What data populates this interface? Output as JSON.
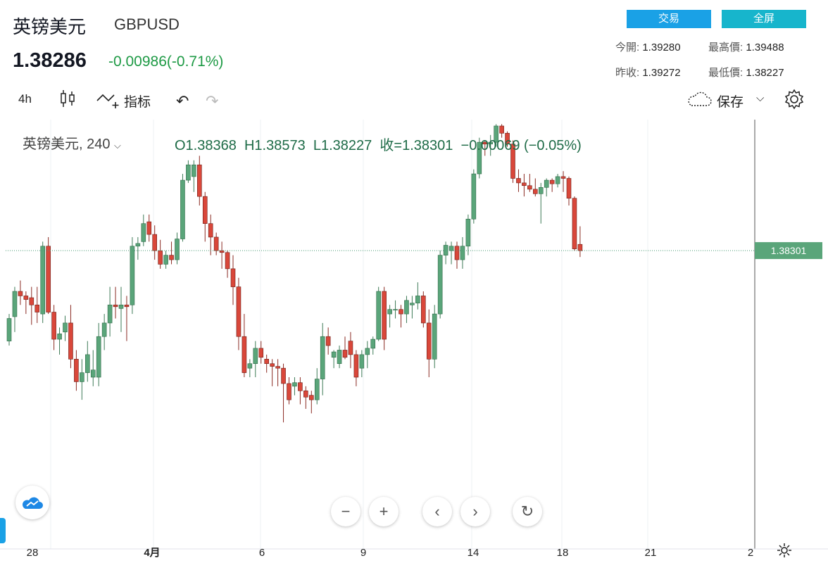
{
  "header": {
    "name": "英镑美元",
    "symbol": "GBPUSD",
    "price": "1.38286",
    "change": "-0.00986(-0.71%)",
    "trade_label": "交易",
    "fullscreen_label": "全屏",
    "open_label": "今開:",
    "open_value": "1.39280",
    "high_label": "最高價:",
    "high_value": "1.39488",
    "prev_label": "昨收:",
    "prev_value": "1.39272",
    "low_label": "最低價:",
    "low_value": "1.38227"
  },
  "toolbar": {
    "interval": "4h",
    "indicators_label": "指标",
    "save_label": "保存"
  },
  "legend": {
    "title": "英镑美元, 240",
    "open": "O1.38368",
    "high": "H1.38573",
    "low": "L1.38227",
    "close": "收=1.38301",
    "change": "−0.00069 (−0.05%)"
  },
  "colors": {
    "up": "#26a69a",
    "up_fill": "#5aa57a",
    "down": "#d9473a",
    "button": "#1aa1e6",
    "fullscreen": "#17b5cc",
    "change_text": "#1e9a45"
  },
  "chart_data": {
    "type": "candlestick",
    "interval": "4h",
    "x_ticks": [
      "28",
      "4月",
      "6",
      "9",
      "14",
      "18",
      "21",
      "2"
    ],
    "last_price_label": "1.38301",
    "ylim": [
      1.35,
      1.3975
    ],
    "series": [
      {
        "name": "GBPUSD",
        "ohlc": [
          [
            1.373,
            1.376,
            1.3725,
            1.3755
          ],
          [
            1.3757,
            1.379,
            1.374,
            1.3785
          ],
          [
            1.3785,
            1.3797,
            1.377,
            1.378
          ],
          [
            1.378,
            1.3785,
            1.376,
            1.3776
          ],
          [
            1.3778,
            1.379,
            1.3748,
            1.377
          ],
          [
            1.377,
            1.379,
            1.375,
            1.3762
          ],
          [
            1.376,
            1.384,
            1.375,
            1.3835
          ],
          [
            1.3835,
            1.3845,
            1.376,
            1.3762
          ],
          [
            1.3762,
            1.377,
            1.372,
            1.3732
          ],
          [
            1.3732,
            1.3745,
            1.3715,
            1.3738
          ],
          [
            1.374,
            1.3758,
            1.373,
            1.375
          ],
          [
            1.375,
            1.377,
            1.37,
            1.371
          ],
          [
            1.371,
            1.372,
            1.3675,
            1.3685
          ],
          [
            1.3685,
            1.371,
            1.3665,
            1.3695
          ],
          [
            1.3695,
            1.373,
            1.3685,
            1.3715
          ],
          [
            1.369,
            1.372,
            1.368,
            1.3698
          ],
          [
            1.369,
            1.375,
            1.368,
            1.3735
          ],
          [
            1.3735,
            1.376,
            1.372,
            1.375
          ],
          [
            1.375,
            1.379,
            1.3735,
            1.377
          ],
          [
            1.377,
            1.379,
            1.3755,
            1.3768
          ],
          [
            1.3766,
            1.379,
            1.374,
            1.377
          ],
          [
            1.377,
            1.378,
            1.373,
            1.3768
          ],
          [
            1.377,
            1.3845,
            1.376,
            1.3835
          ],
          [
            1.3835,
            1.3845,
            1.382,
            1.3838
          ],
          [
            1.384,
            1.387,
            1.3835,
            1.386
          ],
          [
            1.3862,
            1.387,
            1.384,
            1.3848
          ],
          [
            1.3848,
            1.3858,
            1.382,
            1.383
          ],
          [
            1.383,
            1.3842,
            1.381,
            1.3815
          ],
          [
            1.3815,
            1.383,
            1.381,
            1.3825
          ],
          [
            1.3825,
            1.384,
            1.3815,
            1.382
          ],
          [
            1.382,
            1.385,
            1.3815,
            1.3843
          ],
          [
            1.3843,
            1.3915,
            1.384,
            1.3908
          ],
          [
            1.3908,
            1.393,
            1.3905,
            1.3925
          ],
          [
            1.3912,
            1.393,
            1.3895,
            1.3925
          ],
          [
            1.3925,
            1.3935,
            1.388,
            1.389
          ],
          [
            1.389,
            1.3895,
            1.384,
            1.386
          ],
          [
            1.386,
            1.387,
            1.3825,
            1.3845
          ],
          [
            1.3845,
            1.385,
            1.3825,
            1.383
          ],
          [
            1.383,
            1.384,
            1.381,
            1.3828
          ],
          [
            1.3828,
            1.383,
            1.38,
            1.381
          ],
          [
            1.381,
            1.3825,
            1.377,
            1.379
          ],
          [
            1.379,
            1.38,
            1.372,
            1.3735
          ],
          [
            1.3735,
            1.376,
            1.369,
            1.3695
          ],
          [
            1.37,
            1.371,
            1.369,
            1.3705
          ],
          [
            1.3705,
            1.373,
            1.369,
            1.3722
          ],
          [
            1.3722,
            1.373,
            1.3705,
            1.3712
          ],
          [
            1.371,
            1.3715,
            1.3695,
            1.3705
          ],
          [
            1.3705,
            1.371,
            1.368,
            1.3702
          ],
          [
            1.3702,
            1.371,
            1.368,
            1.37
          ],
          [
            1.37,
            1.3705,
            1.364,
            1.3683
          ],
          [
            1.3683,
            1.369,
            1.366,
            1.3665
          ],
          [
            1.368,
            1.369,
            1.367,
            1.3684
          ],
          [
            1.3684,
            1.369,
            1.366,
            1.3675
          ],
          [
            1.3675,
            1.368,
            1.3655,
            1.3668
          ],
          [
            1.367,
            1.3675,
            1.365,
            1.3665
          ],
          [
            1.3665,
            1.37,
            1.366,
            1.3688
          ],
          [
            1.3688,
            1.375,
            1.367,
            1.3735
          ],
          [
            1.3735,
            1.3745,
            1.3715,
            1.3725
          ],
          [
            1.3712,
            1.372,
            1.37,
            1.3718
          ],
          [
            1.3705,
            1.3725,
            1.37,
            1.372
          ],
          [
            1.372,
            1.3735,
            1.371,
            1.3712
          ],
          [
            1.373,
            1.374,
            1.37,
            1.3715
          ],
          [
            1.3715,
            1.372,
            1.368,
            1.369
          ],
          [
            1.37,
            1.372,
            1.369,
            1.3715
          ],
          [
            1.3715,
            1.373,
            1.37,
            1.3722
          ],
          [
            1.3722,
            1.3735,
            1.3715,
            1.3732
          ],
          [
            1.3732,
            1.379,
            1.373,
            1.3785
          ],
          [
            1.3785,
            1.379,
            1.372,
            1.3732
          ],
          [
            1.376,
            1.377,
            1.3745,
            1.3765
          ],
          [
            1.3765,
            1.3775,
            1.3755,
            1.3765
          ],
          [
            1.3765,
            1.377,
            1.3745,
            1.376
          ],
          [
            1.376,
            1.378,
            1.375,
            1.3775
          ],
          [
            1.377,
            1.378,
            1.3755,
            1.3772
          ],
          [
            1.3772,
            1.3795,
            1.3765,
            1.378
          ],
          [
            1.378,
            1.3785,
            1.3745,
            1.375
          ],
          [
            1.375,
            1.3765,
            1.369,
            1.371
          ],
          [
            1.371,
            1.377,
            1.37,
            1.376
          ],
          [
            1.376,
            1.383,
            1.3755,
            1.3825
          ],
          [
            1.3825,
            1.384,
            1.3815,
            1.3836
          ],
          [
            1.383,
            1.384,
            1.3815,
            1.3835
          ],
          [
            1.3835,
            1.384,
            1.381,
            1.382
          ],
          [
            1.382,
            1.3845,
            1.381,
            1.3835
          ],
          [
            1.3835,
            1.387,
            1.3825,
            1.3865
          ],
          [
            1.3865,
            1.392,
            1.386,
            1.3915
          ],
          [
            1.3915,
            1.3955,
            1.391,
            1.395
          ],
          [
            1.395,
            1.3952,
            1.3935,
            1.3948
          ],
          [
            1.3948,
            1.3958,
            1.3935,
            1.395
          ],
          [
            1.395,
            1.397,
            1.3945,
            1.3968
          ],
          [
            1.3968,
            1.397,
            1.3955,
            1.396
          ],
          [
            1.396,
            1.3962,
            1.3945,
            1.3948
          ],
          [
            1.3948,
            1.3952,
            1.3905,
            1.391
          ],
          [
            1.391,
            1.392,
            1.3895,
            1.3905
          ],
          [
            1.3905,
            1.3915,
            1.389,
            1.3902
          ],
          [
            1.3902,
            1.3915,
            1.3895,
            1.3898
          ],
          [
            1.3898,
            1.391,
            1.389,
            1.3893
          ],
          [
            1.3893,
            1.3905,
            1.386,
            1.39
          ],
          [
            1.39,
            1.391,
            1.389,
            1.3908
          ],
          [
            1.3908,
            1.391,
            1.3895,
            1.3904
          ],
          [
            1.3904,
            1.3915,
            1.39,
            1.3912
          ],
          [
            1.3912,
            1.3918,
            1.3895,
            1.391
          ],
          [
            1.391,
            1.3912,
            1.388,
            1.3888
          ],
          [
            1.3888,
            1.389,
            1.383,
            1.3832
          ],
          [
            1.3837,
            1.3857,
            1.3823,
            1.383
          ]
        ]
      }
    ]
  }
}
